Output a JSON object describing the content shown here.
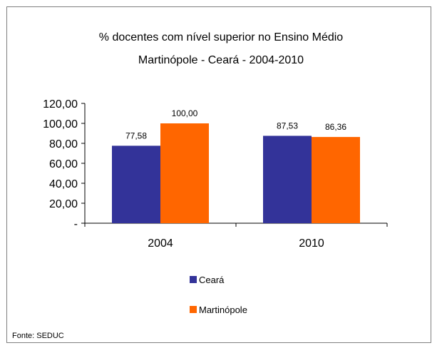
{
  "chart_data": {
    "type": "bar",
    "title": "% docentes com nível superior no Ensino Médio",
    "subtitle": "Martinópole -  Ceará - 2004-2010",
    "categories": [
      "2004",
      "2010"
    ],
    "series": [
      {
        "name": "Ceará",
        "values": [
          77.58,
          87.53
        ],
        "labels": [
          "77,58",
          "87,53"
        ],
        "color": "#333399"
      },
      {
        "name": "Martinópole",
        "values": [
          100.0,
          86.36
        ],
        "labels": [
          "100,00",
          "86,36"
        ],
        "color": "#ff6600"
      }
    ],
    "ylim": [
      0,
      120
    ],
    "yticks": [
      {
        "value": 0,
        "label": "-"
      },
      {
        "value": 20,
        "label": "20,00"
      },
      {
        "value": 40,
        "label": "40,00"
      },
      {
        "value": 60,
        "label": "60,00"
      },
      {
        "value": 80,
        "label": "80,00"
      },
      {
        "value": 100,
        "label": "100,00"
      },
      {
        "value": 120,
        "label": "120,00"
      }
    ],
    "xlabel": "",
    "ylabel": "",
    "grid": false,
    "legend_placement": "bottom",
    "source": "Fonte: SEDUC"
  }
}
